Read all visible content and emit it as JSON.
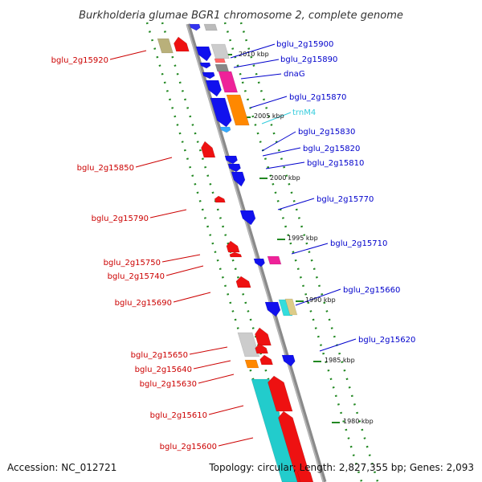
{
  "title": "Burkholderia glumae BGR1 chromosome 2, complete genome",
  "accession": "Accession: NC_012721",
  "summary": "Topology: circular; Length: 2,827,355 bp; Genes: 2,093",
  "colors": {
    "forward_label": "#0000cc",
    "reverse_label": "#cc0000",
    "rna_label": "#33ccdd",
    "axis": "#8a8a8a",
    "tick": "#228822"
  },
  "kbp_markers": [
    "2010 kbp",
    "2005 kbp",
    "2000 kbp",
    "1995 kbp",
    "1990 kbp",
    "1985 kbp",
    "1980 kbp"
  ],
  "genes_forward": [
    {
      "label": "bglu_2g15900",
      "kind": "gene"
    },
    {
      "label": "bglu_2g15890",
      "kind": "gene"
    },
    {
      "label": "dnaG",
      "kind": "gene"
    },
    {
      "label": "bglu_2g15870",
      "kind": "gene"
    },
    {
      "label": "trnM4",
      "kind": "rna"
    },
    {
      "label": "bglu_2g15830",
      "kind": "gene"
    },
    {
      "label": "bglu_2g15820",
      "kind": "gene"
    },
    {
      "label": "bglu_2g15810",
      "kind": "gene"
    },
    {
      "label": "bglu_2g15770",
      "kind": "gene"
    },
    {
      "label": "bglu_2g15710",
      "kind": "gene"
    },
    {
      "label": "bglu_2g15660",
      "kind": "gene"
    },
    {
      "label": "bglu_2g15620",
      "kind": "gene"
    }
  ],
  "genes_reverse": [
    {
      "label": "bglu_2g15920"
    },
    {
      "label": "bglu_2g15850"
    },
    {
      "label": "bglu_2g15790"
    },
    {
      "label": "bglu_2g15750"
    },
    {
      "label": "bglu_2g15740"
    },
    {
      "label": "bglu_2g15690"
    },
    {
      "label": "bglu_2g15650"
    },
    {
      "label": "bglu_2g15640"
    },
    {
      "label": "bglu_2g15630"
    },
    {
      "label": "bglu_2g15610"
    },
    {
      "label": "bglu_2g15600"
    }
  ]
}
